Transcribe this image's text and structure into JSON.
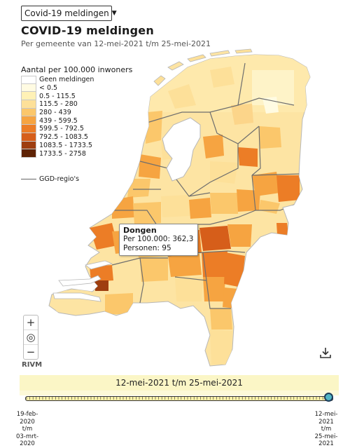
{
  "selector": {
    "value": "Covid-19 meldingen",
    "icon": "chevron-down-icon"
  },
  "title": "COVID-19 meldingen",
  "subtitle": "Per gemeente van 12-mei-2021 t/m 25-mei-2021",
  "legend": {
    "title": "Aantal per 100.000 inwoners",
    "classes": [
      {
        "label": "Geen meldingen",
        "color": "#ffffff"
      },
      {
        "label": "< 0.5",
        "color": "#fffbe2"
      },
      {
        "label": "0.5 - 115.5",
        "color": "#fff1b6"
      },
      {
        "label": "115.5 - 280",
        "color": "#fde099"
      },
      {
        "label": "280 - 439",
        "color": "#fbc76b"
      },
      {
        "label": "439 - 599.5",
        "color": "#f6a441"
      },
      {
        "label": "599.5 - 792.5",
        "color": "#ec7d26"
      },
      {
        "label": "792.5 - 1083.5",
        "color": "#d65e1a"
      },
      {
        "label": "1083.5 - 1733.5",
        "color": "#9e3e10"
      },
      {
        "label": "1733.5 - 2758",
        "color": "#5e2305"
      }
    ],
    "ggd_label": "GGD-regio's"
  },
  "tooltip": {
    "name": "Dongen",
    "per_100000_label": "Per 100.000:",
    "per_100000_value": "362,3",
    "persons_label": "Personen:",
    "persons_value": "95"
  },
  "controls": {
    "zoom_in": "+",
    "locate": "◎",
    "zoom_out": "−",
    "attribution": "RIVM",
    "download_icon": "download-icon"
  },
  "timeline": {
    "period_label": "12-mei-2021 t/m 25-mei-2021",
    "start_label": "19-feb-\n2020 t/m\n03-mrt-\n2020",
    "end_label": "12-mei-\n2021 t/m\n25-mei-\n2021"
  }
}
